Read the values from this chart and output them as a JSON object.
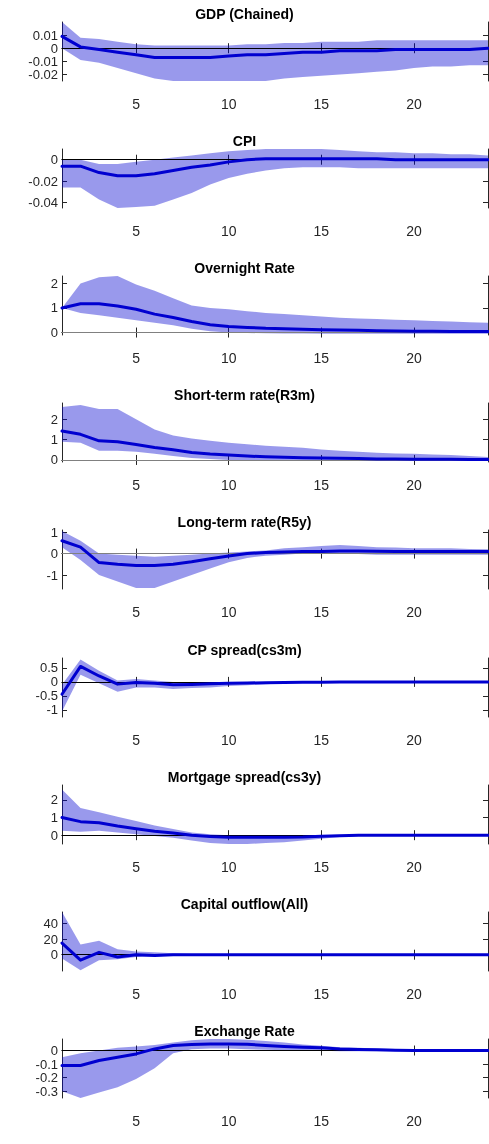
{
  "chart_data": [
    {
      "type": "line",
      "title": "GDP (Chained)",
      "xlim": [
        1,
        24
      ],
      "xticks": [
        5,
        10,
        15,
        20
      ],
      "ylim": [
        -0.025,
        0.02
      ],
      "yticks": [
        -0.02,
        -0.01,
        0,
        0.01
      ],
      "ref_lines": [
        {
          "axis": "y",
          "value": 0,
          "color": "#000000"
        }
      ],
      "x": [
        1,
        2,
        3,
        4,
        5,
        6,
        7,
        8,
        9,
        10,
        11,
        12,
        13,
        14,
        15,
        16,
        17,
        18,
        19,
        20,
        21,
        22,
        23,
        24
      ],
      "series": [
        {
          "color": "#0000d0",
          "values": [
            0.009,
            0.001,
            -0.001,
            -0.003,
            -0.005,
            -0.007,
            -0.007,
            -0.007,
            -0.007,
            -0.006,
            -0.005,
            -0.005,
            -0.004,
            -0.003,
            -0.003,
            -0.002,
            -0.002,
            -0.002,
            -0.001,
            -0.001,
            -0.001,
            -0.001,
            -0.001,
            0
          ],
          "upper": [
            0.02,
            0.008,
            0.007,
            0.005,
            0.003,
            0.002,
            0.002,
            0.002,
            0.002,
            0.002,
            0.003,
            0.003,
            0.004,
            0.004,
            0.005,
            0.005,
            0.005,
            0.006,
            0.006,
            0.006,
            0.006,
            0.006,
            0.006,
            0.006
          ],
          "lower": [
            0,
            -0.009,
            -0.011,
            -0.015,
            -0.019,
            -0.023,
            -0.025,
            -0.025,
            -0.025,
            -0.025,
            -0.025,
            -0.025,
            -0.023,
            -0.022,
            -0.021,
            -0.02,
            -0.019,
            -0.018,
            -0.017,
            -0.015,
            -0.014,
            -0.014,
            -0.013,
            -0.013
          ]
        }
      ]
    },
    {
      "type": "line",
      "title": "CPI",
      "xlim": [
        1,
        24
      ],
      "xticks": [
        5,
        10,
        15,
        20
      ],
      "ylim": [
        -0.045,
        0.01
      ],
      "yticks": [
        -0.04,
        -0.02,
        0
      ],
      "ref_lines": [
        {
          "axis": "y",
          "value": 0,
          "color": "#000000"
        }
      ],
      "x": [
        1,
        2,
        3,
        4,
        5,
        6,
        7,
        8,
        9,
        10,
        11,
        12,
        13,
        14,
        15,
        16,
        17,
        18,
        19,
        20,
        21,
        22,
        23,
        24
      ],
      "series": [
        {
          "color": "#0000d0",
          "values": [
            -0.006,
            -0.006,
            -0.012,
            -0.015,
            -0.015,
            -0.013,
            -0.01,
            -0.007,
            -0.005,
            -0.002,
            0,
            0.001,
            0.001,
            0.001,
            0.001,
            0.001,
            0.001,
            0.001,
            0,
            0,
            0,
            0,
            0,
            0
          ],
          "upper": [
            0,
            0,
            -0.004,
            -0.004,
            -0.002,
            0,
            0.002,
            0.004,
            0.006,
            0.008,
            0.009,
            0.01,
            0.01,
            0.01,
            0.01,
            0.009,
            0.008,
            0.007,
            0.007,
            0.006,
            0.006,
            0.005,
            0.005,
            0.004
          ],
          "lower": [
            -0.026,
            -0.026,
            -0.037,
            -0.045,
            -0.044,
            -0.043,
            -0.037,
            -0.031,
            -0.023,
            -0.017,
            -0.013,
            -0.01,
            -0.008,
            -0.007,
            -0.007,
            -0.007,
            -0.008,
            -0.008,
            -0.008,
            -0.008,
            -0.008,
            -0.008,
            -0.008,
            -0.008
          ]
        }
      ]
    },
    {
      "type": "line",
      "title": "Overnight Rate",
      "xlim": [
        1,
        24
      ],
      "xticks": [
        5,
        10,
        15,
        20
      ],
      "ylim": [
        -0.1,
        2.3
      ],
      "yticks": [
        0,
        1,
        2
      ],
      "grid": false,
      "ref_lines": [
        {
          "axis": "y",
          "value": 0,
          "color": "#808080"
        }
      ],
      "x": [
        1,
        2,
        3,
        4,
        5,
        6,
        7,
        8,
        9,
        10,
        11,
        12,
        13,
        14,
        15,
        16,
        17,
        18,
        19,
        20,
        21,
        22,
        23,
        24
      ],
      "series": [
        {
          "color": "#0000d0",
          "values": [
            1,
            1.17,
            1.17,
            1.08,
            0.95,
            0.75,
            0.61,
            0.45,
            0.32,
            0.25,
            0.21,
            0.17,
            0.15,
            0.13,
            0.11,
            0.1,
            0.09,
            0.07,
            0.06,
            0.05,
            0.05,
            0.04,
            0.04,
            0.04
          ],
          "upper": [
            1,
            2,
            2.25,
            2.3,
            1.95,
            1.7,
            1.4,
            1.1,
            1,
            0.95,
            0.87,
            0.8,
            0.75,
            0.7,
            0.65,
            0.6,
            0.57,
            0.55,
            0.52,
            0.5,
            0.47,
            0.45,
            0.42,
            0.4
          ],
          "lower": [
            1,
            0.8,
            0.7,
            0.6,
            0.5,
            0.4,
            0.3,
            0.15,
            0.05,
            0,
            -0.02,
            -0.03,
            -0.04,
            -0.04,
            -0.05,
            -0.05,
            -0.05,
            -0.05,
            -0.05,
            -0.05,
            -0.05,
            -0.05,
            -0.05,
            -0.05
          ]
        }
      ]
    },
    {
      "type": "line",
      "title": "Short-term rate(R3m)",
      "xlim": [
        1,
        24
      ],
      "xticks": [
        5,
        10,
        15,
        20
      ],
      "ylim": [
        -0.1,
        2.8
      ],
      "yticks": [
        0,
        1,
        2
      ],
      "grid": false,
      "ref_lines": [
        {
          "axis": "y",
          "value": 0,
          "color": "#808080"
        }
      ],
      "x": [
        1,
        2,
        3,
        4,
        5,
        6,
        7,
        8,
        9,
        10,
        11,
        12,
        13,
        14,
        15,
        16,
        17,
        18,
        19,
        20,
        21,
        22,
        23,
        24
      ],
      "series": [
        {
          "color": "#0000d0",
          "values": [
            1.42,
            1.26,
            0.94,
            0.89,
            0.76,
            0.61,
            0.5,
            0.37,
            0.29,
            0.24,
            0.19,
            0.16,
            0.13,
            0.11,
            0.1,
            0.08,
            0.07,
            0.05,
            0.05,
            0.04,
            0.03,
            0.03,
            0.02,
            0.02
          ],
          "upper": [
            2.6,
            2.7,
            2.5,
            2.5,
            2,
            1.5,
            1.2,
            1.05,
            0.95,
            0.85,
            0.77,
            0.7,
            0.65,
            0.6,
            0.52,
            0.45,
            0.4,
            0.35,
            0.32,
            0.3,
            0.27,
            0.25,
            0.2,
            0.15
          ],
          "lower": [
            0.9,
            0.85,
            0.45,
            0.45,
            0.4,
            0.3,
            0.2,
            0.1,
            0.05,
            0,
            -0.02,
            -0.02,
            -0.03,
            -0.03,
            -0.04,
            -0.04,
            -0.05,
            -0.05,
            -0.05,
            -0.05,
            -0.05,
            -0.05,
            -0.05,
            -0.05
          ]
        }
      ]
    },
    {
      "type": "line",
      "title": "Long-term rate(R5y)",
      "xlim": [
        1,
        24
      ],
      "xticks": [
        5,
        10,
        15,
        20
      ],
      "ylim": [
        -1.65,
        1.1
      ],
      "yticks": [
        -1,
        0,
        1
      ],
      "ref_lines": [
        {
          "axis": "y",
          "value": 0,
          "color": "#808080"
        }
      ],
      "x": [
        1,
        2,
        3,
        4,
        5,
        6,
        7,
        8,
        9,
        10,
        11,
        12,
        13,
        14,
        15,
        16,
        17,
        18,
        19,
        20,
        21,
        22,
        23,
        24
      ],
      "series": [
        {
          "color": "#0000d0",
          "values": [
            0.6,
            0.3,
            -0.42,
            -0.5,
            -0.55,
            -0.55,
            -0.5,
            -0.38,
            -0.24,
            -0.11,
            0,
            0.05,
            0.08,
            0.1,
            0.1,
            0.12,
            0.12,
            0.11,
            0.1,
            0.1,
            0.1,
            0.1,
            0.1,
            0.1
          ],
          "upper": [
            1.05,
            0.6,
            0,
            -0.05,
            -0.1,
            -0.15,
            -0.1,
            -0.05,
            0,
            0.05,
            0.1,
            0.15,
            0.25,
            0.3,
            0.35,
            0.4,
            0.35,
            0.3,
            0.28,
            0.25,
            0.25,
            0.25,
            0.22,
            0.2
          ],
          "lower": [
            0.3,
            -0.3,
            -1,
            -1.3,
            -1.6,
            -1.6,
            -1.3,
            -1,
            -0.7,
            -0.4,
            -0.2,
            -0.1,
            -0.05,
            0,
            0,
            0,
            -0.02,
            -0.05,
            -0.05,
            -0.05,
            -0.05,
            -0.05,
            -0.05,
            -0.05
          ]
        }
      ]
    },
    {
      "type": "line",
      "title": "CP spread(cs3m)",
      "xlim": [
        1,
        24
      ],
      "xticks": [
        5,
        10,
        15,
        20
      ],
      "ylim": [
        -1.25,
        0.85
      ],
      "yticks": [
        -1,
        -0.5,
        0,
        0.5
      ],
      "ref_lines": [
        {
          "axis": "y",
          "value": 0,
          "color": "#000000"
        }
      ],
      "x": [
        1,
        2,
        3,
        4,
        5,
        6,
        7,
        8,
        9,
        10,
        11,
        12,
        13,
        14,
        15,
        16,
        17,
        18,
        19,
        20,
        21,
        22,
        23,
        24
      ],
      "series": [
        {
          "color": "#0000d0",
          "values": [
            -0.44,
            0.55,
            0.21,
            -0.08,
            -0.02,
            -0.05,
            -0.1,
            -0.09,
            -0.07,
            -0.05,
            -0.04,
            -0.03,
            -0.02,
            -0.01,
            -0.01,
            0,
            0,
            0,
            0,
            0,
            0,
            0,
            0,
            0
          ],
          "upper": [
            -0.1,
            0.8,
            0.4,
            0.05,
            0.1,
            0.05,
            0,
            0,
            0,
            0,
            0,
            0,
            0,
            0.01,
            0.01,
            0.01,
            0.01,
            0.01,
            0.01,
            0.01,
            0.01,
            0.01,
            0.01,
            0.01
          ],
          "lower": [
            -1.05,
            0.25,
            -0.05,
            -0.35,
            -0.2,
            -0.2,
            -0.25,
            -0.22,
            -0.2,
            -0.15,
            -0.12,
            -0.08,
            -0.05,
            -0.02,
            -0.01,
            -0.01,
            -0.01,
            -0.01,
            -0.01,
            -0.01,
            -0.01,
            -0.01,
            -0.01,
            -0.01
          ]
        }
      ]
    },
    {
      "type": "line",
      "title": "Mortgage spread(cs3y)",
      "xlim": [
        1,
        24
      ],
      "xticks": [
        5,
        10,
        15,
        20
      ],
      "ylim": [
        -0.5,
        2.85
      ],
      "yticks": [
        0,
        1,
        2
      ],
      "grid": false,
      "ref_lines": [
        {
          "axis": "y",
          "value": 0,
          "color": "#000000"
        }
      ],
      "x": [
        1,
        2,
        3,
        4,
        5,
        6,
        7,
        8,
        9,
        10,
        11,
        12,
        13,
        14,
        15,
        16,
        17,
        18,
        19,
        20,
        21,
        22,
        23,
        24
      ],
      "series": [
        {
          "color": "#0000d0",
          "values": [
            1,
            0.77,
            0.71,
            0.52,
            0.37,
            0.23,
            0.13,
            0,
            -0.08,
            -0.12,
            -0.12,
            -0.12,
            -0.11,
            -0.1,
            -0.06,
            -0.03,
            0,
            0,
            0,
            0,
            0,
            0,
            0,
            0
          ],
          "upper": [
            2.6,
            1.55,
            1.3,
            1.05,
            0.8,
            0.55,
            0.35,
            0.15,
            0.05,
            0,
            0,
            0,
            0,
            0,
            0,
            0.02,
            0.03,
            0.04,
            0.05,
            0.05,
            0.05,
            0.05,
            0.05,
            0.05
          ],
          "lower": [
            0.25,
            0.2,
            0.25,
            0.15,
            0.05,
            -0.05,
            -0.15,
            -0.3,
            -0.45,
            -0.5,
            -0.5,
            -0.45,
            -0.4,
            -0.3,
            -0.2,
            -0.1,
            -0.05,
            -0.02,
            0,
            0,
            0,
            0,
            0,
            0
          ]
        }
      ]
    },
    {
      "type": "line",
      "title": "Capital outflow(All)",
      "xlim": [
        1,
        24
      ],
      "xticks": [
        5,
        10,
        15,
        20
      ],
      "ylim": [
        -21,
        55
      ],
      "yticks": [
        0,
        20,
        40
      ],
      "grid": false,
      "ref_lines": [
        {
          "axis": "y",
          "value": 0,
          "color": "#000000"
        }
      ],
      "x": [
        1,
        2,
        3,
        4,
        5,
        6,
        7,
        8,
        9,
        10,
        11,
        12,
        13,
        14,
        15,
        16,
        17,
        18,
        19,
        20,
        21,
        22,
        23,
        24
      ],
      "series": [
        {
          "color": "#0000d0",
          "values": [
            15,
            -7,
            3,
            -3,
            0,
            -1,
            0,
            0,
            0,
            0,
            0,
            0,
            0,
            0,
            0,
            0,
            0,
            0,
            0,
            0,
            0,
            0,
            0,
            0
          ],
          "upper": [
            55,
            13,
            18,
            7,
            4,
            3,
            2,
            1,
            1,
            0.5,
            0.5,
            0.5,
            0.5,
            0.5,
            0.5,
            0.5,
            0.5,
            0.5,
            0.5,
            0.5,
            0.5,
            0.5,
            0.5,
            0.5
          ],
          "lower": [
            -5,
            -20,
            -7,
            -6,
            -3,
            -2,
            -1.5,
            -1.3,
            -1,
            -0.5,
            -0.5,
            -0.5,
            -0.5,
            -0.5,
            -0.5,
            -0.5,
            -0.5,
            -0.5,
            -0.5,
            -0.5,
            -0.5,
            -0.5,
            -0.5,
            -0.5
          ]
        }
      ]
    },
    {
      "type": "line",
      "title": "Exchange Rate",
      "xlim": [
        1,
        24
      ],
      "xticks": [
        5,
        10,
        15,
        20
      ],
      "ylim": [
        -0.35,
        0.085
      ],
      "yticks": [
        -0.3,
        -0.2,
        -0.1,
        0
      ],
      "ref_lines": [
        {
          "axis": "y",
          "value": 0,
          "color": "#000000"
        }
      ],
      "x": [
        1,
        2,
        3,
        4,
        5,
        6,
        7,
        8,
        9,
        10,
        11,
        12,
        13,
        14,
        15,
        16,
        17,
        18,
        19,
        20,
        21,
        22,
        23,
        24
      ],
      "series": [
        {
          "color": "#0000d0",
          "values": [
            -0.11,
            -0.11,
            -0.074,
            -0.05,
            -0.025,
            0.012,
            0.037,
            0.044,
            0.049,
            0.049,
            0.047,
            0.037,
            0.03,
            0.025,
            0.02,
            0.012,
            0.008,
            0.005,
            0.002,
            0,
            0,
            0,
            0,
            0
          ],
          "upper": [
            -0.05,
            -0.02,
            0,
            0.02,
            0.03,
            0.04,
            0.06,
            0.075,
            0.085,
            0.085,
            0.08,
            0.07,
            0.06,
            0.045,
            0.035,
            0.025,
            0.02,
            0.015,
            0.012,
            0.01,
            0.008,
            0.007,
            0.006,
            0.005
          ],
          "lower": [
            -0.3,
            -0.35,
            -0.31,
            -0.27,
            -0.21,
            -0.13,
            -0.02,
            0.01,
            0.015,
            0.015,
            0.01,
            0.005,
            0.002,
            0,
            -0.002,
            -0.005,
            -0.005,
            -0.005,
            -0.005,
            -0.005,
            -0.005,
            -0.005,
            -0.005,
            -0.005
          ]
        }
      ]
    }
  ]
}
